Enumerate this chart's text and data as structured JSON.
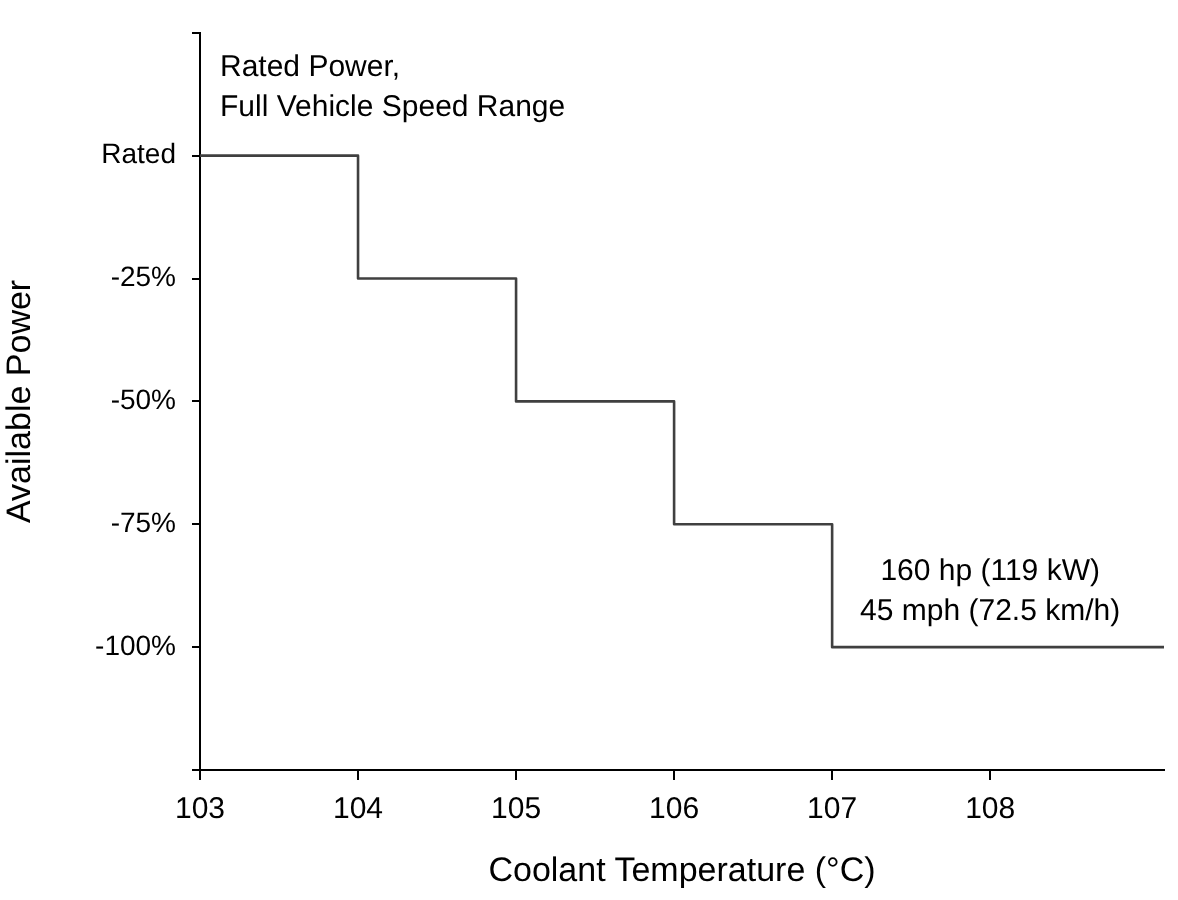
{
  "chart_data": {
    "type": "step",
    "xlabel": "Coolant Temperature (°C)",
    "ylabel": "Available Power",
    "x": [
      103,
      104,
      105,
      106,
      107,
      109.1
    ],
    "series": [
      {
        "color": "#404040",
        "values": [
          0,
          -25,
          -50,
          -75,
          -100,
          -100
        ]
      }
    ],
    "xlim": [
      103,
      109.1
    ],
    "xticks": [
      103,
      104,
      105,
      106,
      107,
      108
    ],
    "ylim": [
      -125,
      25
    ],
    "yticks": [
      {
        "value": 25,
        "label": null
      },
      {
        "value": 0,
        "label": "Rated"
      },
      {
        "value": -25,
        "label": "-25%"
      },
      {
        "value": -50,
        "label": "-50%"
      },
      {
        "value": -75,
        "label": "-75%"
      },
      {
        "value": -100,
        "label": "-100%"
      },
      {
        "value": -125,
        "label": null
      }
    ],
    "annotations": [
      "Rated Power,\nFull Vehicle Speed Range",
      {
        "text": "160 hp (119 kW)\n45 mph (72.5 km/h)",
        "x": 108,
        "y": -100
      }
    ],
    "grid": false,
    "legend": false,
    "marker": "none",
    "line_style": "solid"
  }
}
